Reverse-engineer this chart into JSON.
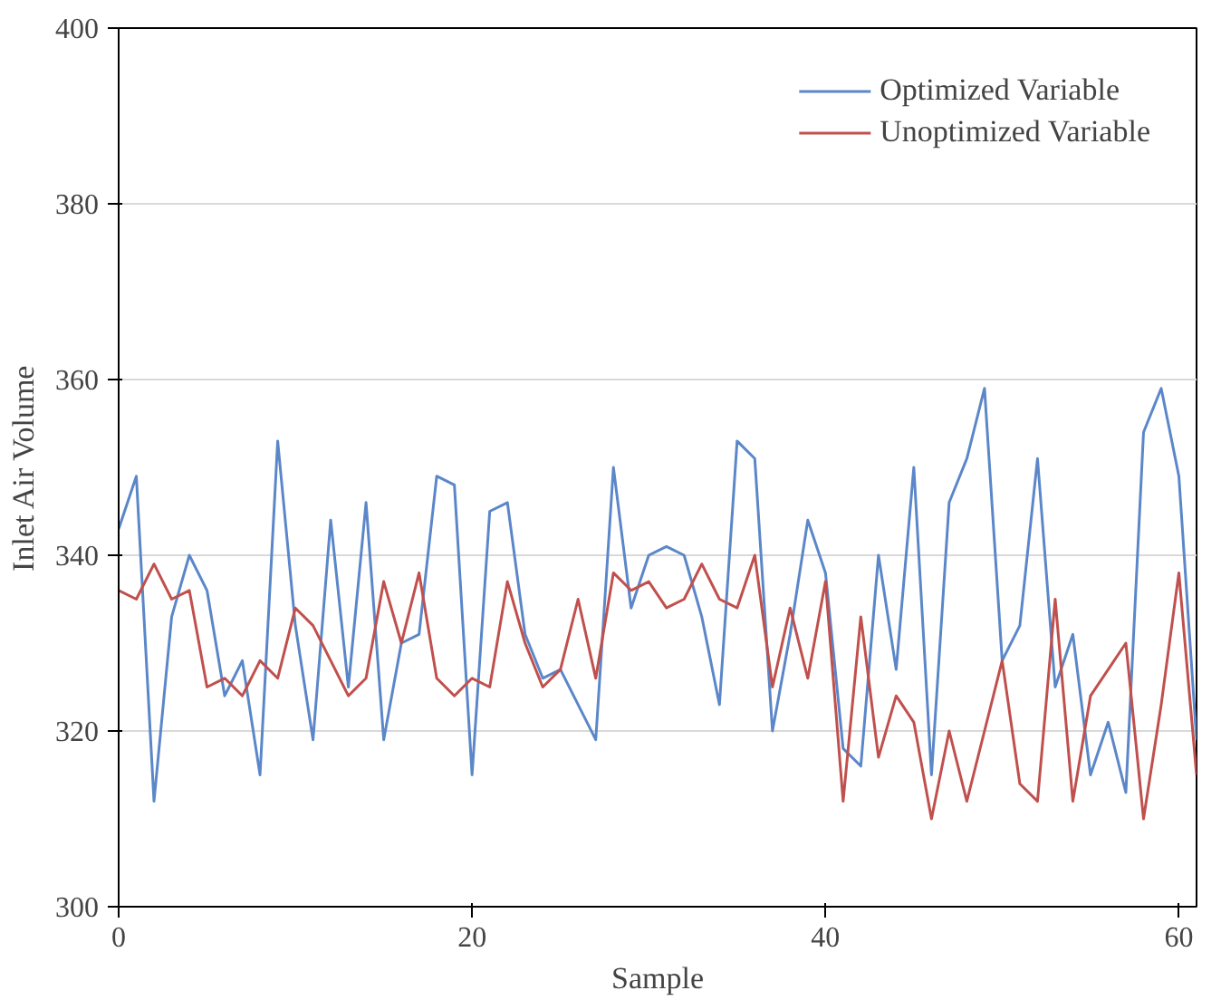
{
  "chart_data": {
    "type": "line",
    "xlabel": "Sample",
    "ylabel": "Inlet Air Volume",
    "x": [
      0,
      1,
      2,
      3,
      4,
      5,
      6,
      7,
      8,
      9,
      10,
      11,
      12,
      13,
      14,
      15,
      16,
      17,
      18,
      19,
      20,
      21,
      22,
      23,
      24,
      25,
      26,
      27,
      28,
      29,
      30,
      31,
      32,
      33,
      34,
      35,
      36,
      37,
      38,
      39,
      40,
      41,
      42,
      43,
      44,
      45,
      46,
      47,
      48,
      49,
      50,
      51,
      52,
      53,
      54,
      55,
      56,
      57,
      58,
      59,
      60,
      61
    ],
    "series": [
      {
        "name": "Optimized Variable",
        "color": "#5b87c9",
        "values": [
          343,
          349,
          312,
          333,
          340,
          336,
          324,
          328,
          315,
          353,
          332,
          319,
          344,
          325,
          346,
          319,
          330,
          331,
          349,
          348,
          315,
          345,
          346,
          331,
          326,
          327,
          323,
          319,
          350,
          334,
          340,
          341,
          340,
          333,
          323,
          353,
          351,
          320,
          331,
          344,
          338,
          318,
          316,
          340,
          327,
          350,
          315,
          346,
          351,
          359,
          328,
          332,
          351,
          325,
          331,
          315,
          321,
          313,
          354,
          359,
          349,
          319
        ]
      },
      {
        "name": "Unoptimized Variable",
        "color": "#c0504d",
        "values": [
          336,
          335,
          339,
          335,
          336,
          325,
          326,
          324,
          328,
          326,
          334,
          332,
          328,
          324,
          326,
          337,
          330,
          338,
          326,
          324,
          326,
          325,
          337,
          330,
          325,
          327,
          335,
          326,
          338,
          336,
          337,
          334,
          335,
          339,
          335,
          334,
          340,
          325,
          334,
          326,
          337,
          312,
          333,
          317,
          324,
          321,
          310,
          320,
          312,
          320,
          328,
          314,
          312,
          335,
          312,
          324,
          327,
          330,
          310,
          323,
          338,
          315
        ]
      }
    ],
    "xlim": [
      0,
      61
    ],
    "xticks": [
      0,
      20,
      40,
      60
    ],
    "ylim": [
      300,
      400
    ],
    "yticks": [
      300,
      320,
      340,
      360,
      380,
      400
    ],
    "grid": "y",
    "legend": "top right",
    "marker": "none",
    "line_style": "solid"
  }
}
